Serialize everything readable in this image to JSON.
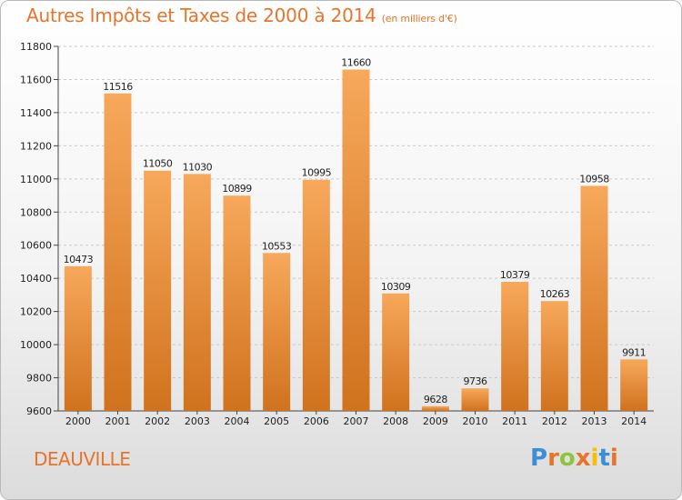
{
  "header": {
    "title": "Autres Impôts et Taxes de 2000 à 2014",
    "subtitle": "(en milliers d'€)"
  },
  "footer": {
    "city": "DEAUVILLE",
    "logo_text": "Proxiti",
    "logo_colors": [
      "#3a8fd6",
      "#e8732a",
      "#8cc63f",
      "#e8732a",
      "#f2c200",
      "#3a8fd6",
      "#e8732a"
    ]
  },
  "colors": {
    "bar_fill_top": "#f7a85a",
    "bar_fill_bottom": "#d0721e",
    "title": "#e8732a",
    "grid": "#c9c9c9"
  },
  "chart_data": {
    "type": "bar",
    "title": "Autres Impôts et Taxes de 2000 à 2014",
    "subtitle": "(en milliers d'€)",
    "categories": [
      "2000",
      "2001",
      "2002",
      "2003",
      "2004",
      "2005",
      "2006",
      "2007",
      "2008",
      "2009",
      "2010",
      "2011",
      "2012",
      "2013",
      "2014"
    ],
    "values": [
      10473,
      11516,
      11050,
      11030,
      10899,
      10553,
      10995,
      11660,
      10309,
      9628,
      9736,
      10379,
      10263,
      10958,
      9911
    ],
    "ylim": [
      9600,
      11800
    ],
    "yticks": [
      9600,
      9800,
      10000,
      10200,
      10400,
      10600,
      10800,
      11000,
      11200,
      11400,
      11600,
      11800
    ],
    "grid": true,
    "xlabel": "",
    "ylabel": ""
  }
}
